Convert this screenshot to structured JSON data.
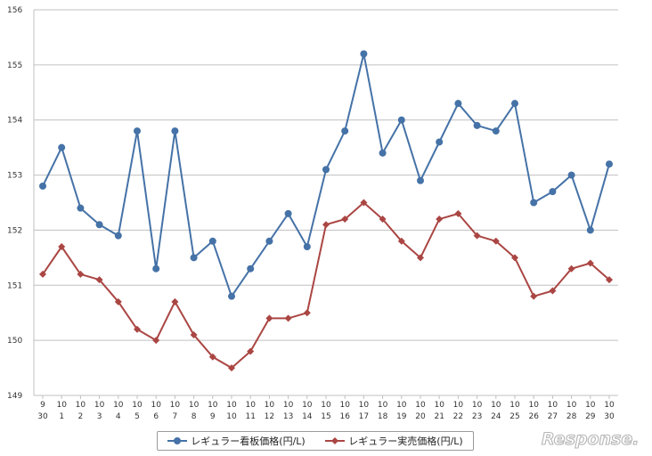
{
  "chart_data": {
    "type": "line",
    "ylim": [
      149,
      156
    ],
    "y_ticks": [
      "149",
      "150",
      "151",
      "152",
      "153",
      "154",
      "155",
      "156"
    ],
    "x_top": [
      "9",
      "10",
      "10",
      "10",
      "10",
      "10",
      "10",
      "10",
      "10",
      "10",
      "10",
      "10",
      "10",
      "10",
      "10",
      "10",
      "10",
      "10",
      "10",
      "10",
      "10",
      "10",
      "10",
      "10",
      "10",
      "10",
      "10",
      "10",
      "10",
      "10",
      "10"
    ],
    "x_bottom": [
      "30",
      "1",
      "2",
      "3",
      "4",
      "5",
      "6",
      "7",
      "8",
      "9",
      "10",
      "11",
      "12",
      "13",
      "14",
      "15",
      "16",
      "17",
      "18",
      "19",
      "20",
      "21",
      "22",
      "23",
      "24",
      "25",
      "26",
      "27",
      "28",
      "29",
      "30"
    ],
    "grid": true,
    "legend_position": "bottom",
    "series": [
      {
        "name": "レギュラー看板価格(円/L)",
        "color": "#4572a7",
        "marker": "circle",
        "values": [
          152.8,
          153.5,
          152.4,
          152.1,
          151.9,
          153.8,
          151.3,
          153.8,
          151.5,
          151.8,
          150.8,
          151.3,
          151.8,
          152.3,
          151.7,
          153.1,
          153.8,
          155.2,
          153.4,
          154.0,
          152.9,
          153.6,
          154.3,
          153.9,
          153.8,
          154.3,
          152.5,
          152.7,
          153.0,
          152.0,
          153.2
        ]
      },
      {
        "name": "レギュラー実売価格(円/L)",
        "color": "#aa4643",
        "marker": "diamond",
        "values": [
          151.2,
          151.7,
          151.2,
          151.1,
          150.7,
          150.2,
          150.0,
          150.7,
          150.1,
          149.7,
          149.5,
          149.8,
          150.4,
          150.4,
          150.5,
          152.1,
          152.2,
          152.5,
          152.2,
          151.8,
          151.5,
          152.2,
          152.3,
          151.9,
          151.8,
          151.5,
          150.8,
          150.9,
          151.3,
          151.4,
          151.1
        ]
      }
    ]
  },
  "watermark": {
    "text": "Response."
  }
}
